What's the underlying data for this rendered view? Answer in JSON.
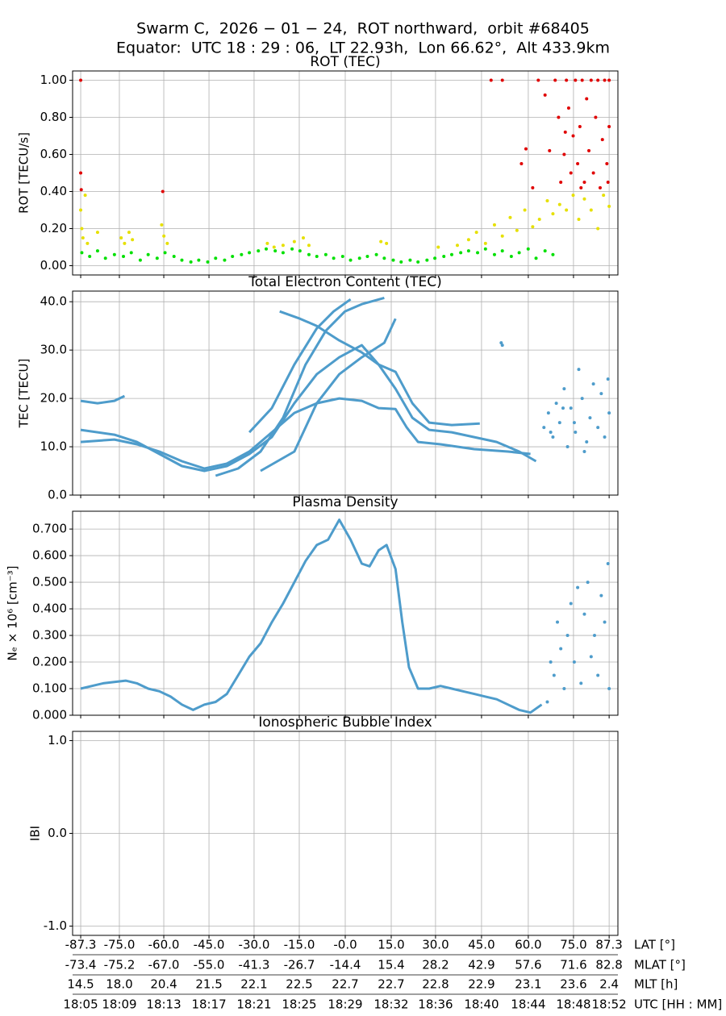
{
  "suptitle": [
    "Swarm C,  2026 − 01 − 24,  ROT northward,  orbit #68405",
    "Equator:  UTC 18 : 29 : 06,  LT 22.93h,  Lon 66.62°,  Alt 433.9km"
  ],
  "x_axis": {
    "xlim": [
      4.28,
      52.78
    ],
    "xticks": [
      5.0,
      8.44,
      12.39,
      16.41,
      20.42,
      24.44,
      28.53,
      32.62,
      36.56,
      40.65,
      44.81,
      48.83,
      52.0
    ],
    "rows": [
      {
        "name": "LAT [°]",
        "labels": [
          "-87.3",
          "-75.0",
          "-60.0",
          "-45.0",
          "-30.0",
          "-15.0",
          "-0.0",
          "15.0",
          "30.0",
          "45.0",
          "60.0",
          "75.0",
          "87.3"
        ]
      },
      {
        "name": "MLAT [°]",
        "labels": [
          "-73.4",
          "-75.2",
          "-67.0",
          "-55.0",
          "-41.3",
          "-26.7",
          "-14.4",
          "15.4",
          "28.2",
          "42.9",
          "57.6",
          "71.6",
          "82.8"
        ]
      },
      {
        "name": "MLT [h]",
        "labels": [
          "14.5",
          "18.0",
          "20.4",
          "21.5",
          "22.1",
          "22.5",
          "22.7",
          "22.7",
          "22.8",
          "22.9",
          "23.1",
          "23.6",
          "2.4"
        ]
      },
      {
        "name": "UTC [HH : MM]",
        "labels": [
          "18:05",
          "18:09",
          "18:13",
          "18:17",
          "18:21",
          "18:25",
          "18:29",
          "18:32",
          "18:36",
          "18:40",
          "18:44",
          "18:48",
          "18:52"
        ]
      }
    ]
  },
  "chart_data": [
    {
      "type": "scatter",
      "title": "ROT (TEC)",
      "y_label": "ROT [TECU/s]",
      "grid": true,
      "ylim": [
        -0.05,
        1.05
      ],
      "yticks": [
        {
          "value": 0,
          "label": "0.00"
        },
        {
          "value": 0.2,
          "label": "0.20"
        },
        {
          "value": 0.4,
          "label": "0.40"
        },
        {
          "value": 0.6,
          "label": "0.60"
        },
        {
          "value": 0.8,
          "label": "0.80"
        },
        {
          "value": 1,
          "label": "1.00"
        }
      ],
      "series": [
        {
          "color": "#00e000",
          "x": [
            5.1,
            5.8,
            6.5,
            7.2,
            8.0,
            8.8,
            9.5,
            10.3,
            11.0,
            11.8,
            12.5,
            13.3,
            14.0,
            14.8,
            15.5,
            16.3,
            17.0,
            17.8,
            18.5,
            19.3,
            20.0,
            20.8,
            21.5,
            22.3,
            23.0,
            23.8,
            24.5,
            25.3,
            26.0,
            26.8,
            27.5,
            28.3,
            29.0,
            29.8,
            30.5,
            31.3,
            32.0,
            32.8,
            33.5,
            34.3,
            35.0,
            35.8,
            36.5,
            37.3,
            38.0,
            38.8,
            39.5,
            40.3,
            41.0,
            41.8,
            42.5,
            43.3,
            44.0,
            44.8,
            45.5,
            46.3,
            47.0
          ],
          "values": [
            0.07,
            0.05,
            0.08,
            0.04,
            0.06,
            0.05,
            0.07,
            0.03,
            0.06,
            0.04,
            0.07,
            0.05,
            0.03,
            0.02,
            0.03,
            0.02,
            0.04,
            0.03,
            0.05,
            0.06,
            0.07,
            0.08,
            0.09,
            0.08,
            0.07,
            0.09,
            0.08,
            0.06,
            0.05,
            0.06,
            0.04,
            0.05,
            0.03,
            0.04,
            0.05,
            0.06,
            0.04,
            0.03,
            0.02,
            0.03,
            0.02,
            0.03,
            0.04,
            0.05,
            0.06,
            0.07,
            0.08,
            0.07,
            0.09,
            0.06,
            0.08,
            0.05,
            0.07,
            0.09,
            0.04,
            0.08,
            0.06
          ]
        },
        {
          "color": "#e6e000",
          "x": [
            5.0,
            5.1,
            5.2,
            5.4,
            5.6,
            6.5,
            8.6,
            8.9,
            9.3,
            9.6,
            12.2,
            12.4,
            12.7,
            21.6,
            22.2,
            23.0,
            24.0,
            24.8,
            25.3,
            31.7,
            32.2,
            36.8,
            38.5,
            39.5,
            40.2,
            41.0,
            41.8,
            42.5,
            43.2,
            43.8,
            44.5,
            45.2,
            45.8,
            46.5,
            47.0,
            47.6,
            48.2,
            48.8,
            49.3,
            49.8,
            50.4,
            51.0,
            51.5,
            52.0
          ],
          "values": [
            0.3,
            0.2,
            0.15,
            0.38,
            0.12,
            0.18,
            0.15,
            0.12,
            0.18,
            0.14,
            0.22,
            0.16,
            0.12,
            0.12,
            0.1,
            0.11,
            0.13,
            0.15,
            0.11,
            0.13,
            0.12,
            0.1,
            0.11,
            0.14,
            0.18,
            0.12,
            0.22,
            0.16,
            0.26,
            0.19,
            0.3,
            0.21,
            0.25,
            0.35,
            0.28,
            0.33,
            0.3,
            0.38,
            0.25,
            0.36,
            0.3,
            0.2,
            0.38,
            0.32
          ]
        },
        {
          "color": "#e00000",
          "x": [
            5.0,
            5.0,
            5.05,
            12.3,
            41.5,
            42.5,
            44.2,
            44.6,
            45.2,
            45.7,
            46.3,
            46.7,
            47.2,
            47.5,
            47.7,
            48.0,
            48.2,
            48.4,
            48.6,
            48.8,
            49.0,
            49.2,
            49.4,
            49.6,
            49.8,
            50.0,
            50.2,
            50.4,
            50.6,
            50.8,
            51.0,
            51.2,
            51.4,
            51.6,
            51.8,
            52.0,
            52.0,
            51.9,
            49.5,
            48.1
          ],
          "values": [
            1.0,
            0.5,
            0.41,
            0.4,
            1.0,
            1.0,
            0.55,
            0.63,
            0.42,
            1.0,
            0.92,
            0.62,
            1.0,
            0.8,
            0.45,
            0.6,
            1.0,
            0.85,
            0.5,
            0.7,
            1.0,
            0.55,
            0.75,
            1.0,
            0.45,
            0.9,
            0.62,
            1.0,
            0.5,
            0.8,
            1.0,
            0.42,
            0.68,
            1.0,
            0.55,
            0.75,
            1.0,
            0.45,
            0.42,
            0.72
          ]
        }
      ]
    },
    {
      "type": "scatter",
      "title": "Total Electron Content (TEC)",
      "y_label": "TEC [TECU]",
      "grid": true,
      "ylim": [
        0,
        42.2
      ],
      "yticks": [
        {
          "value": 0,
          "label": "0.0"
        },
        {
          "value": 10,
          "label": "10.0"
        },
        {
          "value": 20,
          "label": "20.0"
        },
        {
          "value": 30,
          "label": "30.0"
        },
        {
          "value": 40,
          "label": "40.0"
        }
      ],
      "series": [
        {
          "color": "#4e9ccb",
          "connected": true,
          "x": [
            5,
            6.5,
            8.0,
            8.9
          ],
          "values": [
            19.5,
            19.0,
            19.5,
            20.5
          ]
        },
        {
          "color": "#4e9ccb",
          "connected": true,
          "x": [
            5,
            8,
            10,
            12,
            14,
            16,
            18,
            20,
            22,
            24,
            26,
            28,
            30,
            31.5,
            33,
            34,
            35,
            37,
            40,
            43,
            45
          ],
          "values": [
            11,
            11.5,
            10.5,
            9,
            7,
            5.5,
            6.5,
            9,
            13,
            17,
            19,
            20,
            19.5,
            18,
            17.8,
            14,
            11,
            10.5,
            9.5,
            9,
            8.5
          ]
        },
        {
          "color": "#4e9ccb",
          "connected": true,
          "x": [
            5,
            8,
            10,
            12,
            14,
            16,
            18,
            20,
            22,
            24,
            26,
            28,
            30,
            31.5,
            33,
            34.5,
            36,
            38,
            40.5
          ],
          "values": [
            13.5,
            12.5,
            11,
            8.5,
            6,
            5,
            6,
            8.5,
            12,
            19,
            25,
            28.5,
            31,
            27,
            25.5,
            19,
            15,
            14.5,
            14.8
          ]
        },
        {
          "color": "#4e9ccb",
          "connected": true,
          "x": [
            20,
            22,
            24,
            26,
            27.5,
            29
          ],
          "values": [
            13,
            18,
            27,
            34.5,
            38,
            40.5
          ]
        },
        {
          "color": "#4e9ccb",
          "connected": true,
          "x": [
            22.7,
            24.5,
            26,
            28,
            30,
            31.5,
            33,
            34.5,
            36,
            38,
            40,
            42,
            44,
            45.5
          ],
          "values": [
            38,
            36.5,
            35,
            32,
            29.5,
            27,
            22,
            16,
            13.5,
            13,
            12,
            11,
            9,
            7
          ]
        },
        {
          "color": "#4e9ccb",
          "connected": true,
          "x": [
            17,
            19,
            21,
            23,
            25,
            26.8,
            28.5,
            30,
            32
          ],
          "values": [
            4,
            5.5,
            9,
            16,
            27,
            34,
            38,
            39.5,
            40.8
          ]
        },
        {
          "color": "#4e9ccb",
          "connected": true,
          "x": [
            21,
            24,
            26,
            28,
            30,
            32,
            33
          ],
          "values": [
            5,
            9,
            19,
            25,
            28.5,
            31.5,
            36.5
          ]
        },
        {
          "color": "#4e9ccb",
          "x": [
            42.4,
            42.5,
            46.2,
            46.6,
            47.0,
            47.3,
            47.6,
            48.0,
            48.3,
            48.6,
            49.0,
            49.3,
            49.6,
            50.0,
            50.3,
            50.6,
            51.0,
            51.3,
            51.6,
            51.9,
            52.0,
            49.8,
            48.9,
            47.9,
            46.8
          ],
          "values": [
            31.5,
            31,
            14,
            17,
            12,
            19,
            15,
            22,
            10,
            18,
            13,
            26,
            20,
            11,
            16,
            23,
            14,
            21,
            12,
            24,
            17,
            9,
            15,
            18,
            13
          ]
        }
      ]
    },
    {
      "type": "scatter",
      "title": "Plasma Density",
      "y_label": "Nₑ × 10⁶ [cm⁻³]",
      "grid": true,
      "ylim": [
        0,
        0.767
      ],
      "yticks": [
        {
          "value": 0,
          "label": "0.000"
        },
        {
          "value": 0.1,
          "label": "0.100"
        },
        {
          "value": 0.2,
          "label": "0.200"
        },
        {
          "value": 0.3,
          "label": "0.300"
        },
        {
          "value": 0.4,
          "label": "0.400"
        },
        {
          "value": 0.5,
          "label": "0.500"
        },
        {
          "value": 0.6,
          "label": "0.600"
        },
        {
          "value": 0.7,
          "label": "0.700"
        }
      ],
      "series": [
        {
          "color": "#4e9ccb",
          "connected": true,
          "x": [
            5,
            6,
            7,
            8,
            9,
            10,
            11,
            12,
            13,
            14,
            15,
            16,
            17,
            18,
            19,
            20,
            21,
            22,
            23,
            24,
            25,
            26,
            27,
            28,
            29,
            30,
            30.7,
            31.5,
            32.2,
            33,
            33.6,
            34.2,
            35,
            36,
            37,
            38,
            39,
            40,
            41,
            42,
            43,
            44,
            45,
            46
          ],
          "values": [
            0.1,
            0.11,
            0.12,
            0.125,
            0.13,
            0.12,
            0.1,
            0.09,
            0.07,
            0.04,
            0.02,
            0.04,
            0.05,
            0.08,
            0.15,
            0.22,
            0.27,
            0.35,
            0.42,
            0.5,
            0.58,
            0.64,
            0.66,
            0.735,
            0.66,
            0.57,
            0.56,
            0.62,
            0.64,
            0.55,
            0.35,
            0.18,
            0.1,
            0.1,
            0.11,
            0.1,
            0.09,
            0.08,
            0.07,
            0.06,
            0.04,
            0.02,
            0.01,
            0.04
          ]
        },
        {
          "color": "#4e9ccb",
          "x": [
            46.5,
            46.8,
            47.1,
            47.4,
            47.7,
            48.0,
            48.3,
            48.6,
            48.9,
            49.2,
            49.5,
            49.8,
            50.1,
            50.4,
            50.7,
            51.0,
            51.3,
            51.6,
            51.9,
            52.0
          ],
          "values": [
            0.05,
            0.2,
            0.15,
            0.35,
            0.25,
            0.1,
            0.3,
            0.42,
            0.2,
            0.48,
            0.12,
            0.38,
            0.5,
            0.22,
            0.3,
            0.15,
            0.45,
            0.35,
            0.57,
            0.1
          ]
        }
      ]
    },
    {
      "type": "scatter",
      "title": "Ionospheric Bubble Index",
      "y_label": "IBI",
      "grid": true,
      "ylim": [
        -1.1,
        1.1
      ],
      "yticks": [
        {
          "value": -1,
          "label": "-1.0"
        },
        {
          "value": 0,
          "label": "0.0"
        },
        {
          "value": 1,
          "label": "1.0"
        }
      ],
      "series": []
    }
  ]
}
